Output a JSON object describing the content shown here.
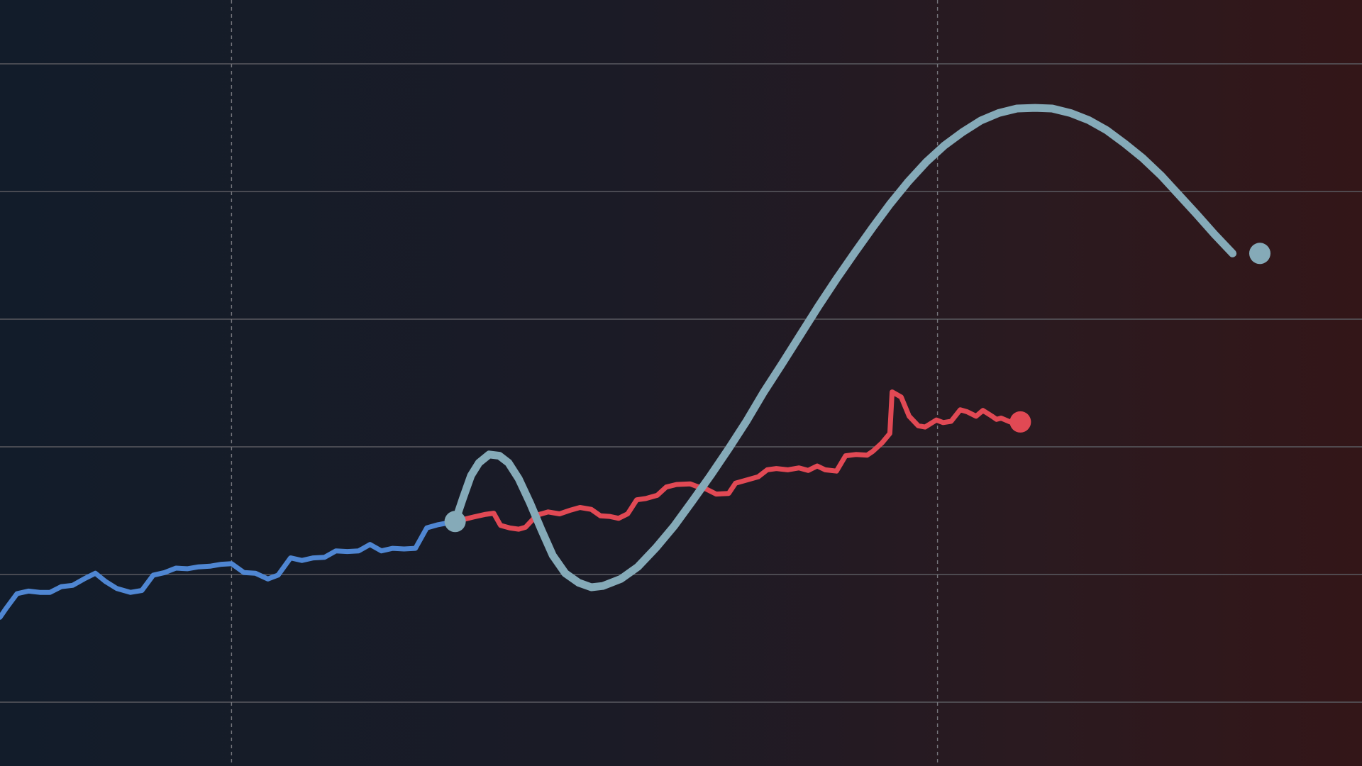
{
  "chart_data": {
    "type": "line",
    "title": "",
    "xlabel": "",
    "ylabel": "",
    "grid": true,
    "legend": "none",
    "xlim": [
      0,
      120
    ],
    "ylim": [
      0,
      12
    ],
    "y_gridlines": [
      1,
      3,
      5,
      7,
      9,
      11
    ],
    "x_gridlines": [
      20.4,
      82.6
    ],
    "colors": {
      "history": "#4f86d2",
      "actual": "#e14954",
      "projection": "#85aab8"
    },
    "series": [
      {
        "key": "history",
        "values": [
          [
            0,
            2.33
          ],
          [
            0.5,
            2.46
          ],
          [
            1.5,
            2.7
          ],
          [
            2.5,
            2.74
          ],
          [
            3.5,
            2.72
          ],
          [
            4.4,
            2.72
          ],
          [
            5.4,
            2.81
          ],
          [
            6.4,
            2.83
          ],
          [
            7.4,
            2.93
          ],
          [
            8.4,
            3.02
          ],
          [
            9.3,
            2.89
          ],
          [
            10.3,
            2.78
          ],
          [
            11.5,
            2.72
          ],
          [
            12.5,
            2.75
          ],
          [
            13.5,
            2.99
          ],
          [
            14.5,
            3.03
          ],
          [
            15.5,
            3.1
          ],
          [
            16.5,
            3.09
          ],
          [
            17.5,
            3.12
          ],
          [
            18.5,
            3.13
          ],
          [
            19.5,
            3.16
          ],
          [
            20.4,
            3.17
          ],
          [
            21.5,
            3.03
          ],
          [
            22.5,
            3.02
          ],
          [
            23.6,
            2.93
          ],
          [
            24.5,
            2.99
          ],
          [
            25.6,
            3.26
          ],
          [
            26.6,
            3.22
          ],
          [
            27.6,
            3.26
          ],
          [
            28.6,
            3.27
          ],
          [
            29.6,
            3.37
          ],
          [
            30.6,
            3.36
          ],
          [
            31.6,
            3.37
          ],
          [
            32.6,
            3.47
          ],
          [
            33.6,
            3.37
          ],
          [
            34.6,
            3.41
          ],
          [
            35.6,
            3.4
          ],
          [
            36.6,
            3.41
          ],
          [
            37.6,
            3.73
          ],
          [
            38.6,
            3.78
          ],
          [
            40.1,
            3.83
          ]
        ]
      },
      {
        "key": "actual",
        "values": [
          [
            40.1,
            3.83
          ],
          [
            41.7,
            3.9
          ],
          [
            42.7,
            3.94
          ],
          [
            43.5,
            3.96
          ],
          [
            44.1,
            3.77
          ],
          [
            44.9,
            3.73
          ],
          [
            45.7,
            3.71
          ],
          [
            46.3,
            3.74
          ],
          [
            47.3,
            3.93
          ],
          [
            48.3,
            3.98
          ],
          [
            49.3,
            3.95
          ],
          [
            50.3,
            4.01
          ],
          [
            51.1,
            4.05
          ],
          [
            52.1,
            4.02
          ],
          [
            52.9,
            3.92
          ],
          [
            53.7,
            3.91
          ],
          [
            54.5,
            3.88
          ],
          [
            55.3,
            3.95
          ],
          [
            56.1,
            4.17
          ],
          [
            56.9,
            4.19
          ],
          [
            57.9,
            4.24
          ],
          [
            58.7,
            4.37
          ],
          [
            59.6,
            4.41
          ],
          [
            60.8,
            4.42
          ],
          [
            61.4,
            4.38
          ],
          [
            62.2,
            4.34
          ],
          [
            63.1,
            4.26
          ],
          [
            64.2,
            4.27
          ],
          [
            64.8,
            4.43
          ],
          [
            65.8,
            4.48
          ],
          [
            66.8,
            4.53
          ],
          [
            67.6,
            4.64
          ],
          [
            68.4,
            4.66
          ],
          [
            69.4,
            4.64
          ],
          [
            70.4,
            4.67
          ],
          [
            71.2,
            4.63
          ],
          [
            72.0,
            4.7
          ],
          [
            72.7,
            4.64
          ],
          [
            73.7,
            4.62
          ],
          [
            74.5,
            4.86
          ],
          [
            75.4,
            4.88
          ],
          [
            76.4,
            4.87
          ],
          [
            76.9,
            4.93
          ],
          [
            77.7,
            5.06
          ],
          [
            78.4,
            5.21
          ],
          [
            78.6,
            5.86
          ],
          [
            79.4,
            5.78
          ],
          [
            80.1,
            5.48
          ],
          [
            80.9,
            5.33
          ],
          [
            81.5,
            5.31
          ],
          [
            82.5,
            5.42
          ],
          [
            83.1,
            5.38
          ],
          [
            83.8,
            5.4
          ],
          [
            84.6,
            5.58
          ],
          [
            85.2,
            5.55
          ],
          [
            86.0,
            5.48
          ],
          [
            86.6,
            5.57
          ],
          [
            87.4,
            5.48
          ],
          [
            87.8,
            5.43
          ],
          [
            88.2,
            5.45
          ],
          [
            89.0,
            5.39
          ]
        ]
      },
      {
        "key": "projection",
        "values": [
          [
            40.1,
            3.83
          ],
          [
            40.8,
            4.2
          ],
          [
            41.5,
            4.55
          ],
          [
            42.2,
            4.75
          ],
          [
            43.1,
            4.88
          ],
          [
            44.0,
            4.86
          ],
          [
            44.8,
            4.75
          ],
          [
            45.7,
            4.5
          ],
          [
            46.7,
            4.12
          ],
          [
            47.7,
            3.7
          ],
          [
            48.7,
            3.3
          ],
          [
            49.8,
            3.02
          ],
          [
            51.0,
            2.87
          ],
          [
            52.1,
            2.8
          ],
          [
            53.1,
            2.82
          ],
          [
            54.7,
            2.93
          ],
          [
            56.2,
            3.12
          ],
          [
            57.8,
            3.42
          ],
          [
            59.4,
            3.76
          ],
          [
            61.0,
            4.15
          ],
          [
            62.6,
            4.55
          ],
          [
            64.2,
            4.97
          ],
          [
            65.8,
            5.41
          ],
          [
            67.3,
            5.86
          ],
          [
            68.9,
            6.3
          ],
          [
            70.5,
            6.75
          ],
          [
            72.1,
            7.2
          ],
          [
            73.7,
            7.63
          ],
          [
            75.3,
            8.04
          ],
          [
            76.9,
            8.44
          ],
          [
            78.4,
            8.8
          ],
          [
            80.0,
            9.15
          ],
          [
            81.6,
            9.46
          ],
          [
            83.2,
            9.72
          ],
          [
            84.8,
            9.93
          ],
          [
            86.4,
            10.11
          ],
          [
            88.0,
            10.23
          ],
          [
            89.6,
            10.3
          ],
          [
            91.2,
            10.31
          ],
          [
            92.7,
            10.3
          ],
          [
            94.3,
            10.23
          ],
          [
            95.9,
            10.12
          ],
          [
            97.5,
            9.96
          ],
          [
            99.1,
            9.75
          ],
          [
            100.7,
            9.52
          ],
          [
            102.3,
            9.25
          ],
          [
            103.8,
            8.96
          ],
          [
            105.4,
            8.65
          ],
          [
            107.0,
            8.33
          ],
          [
            108.6,
            8.03
          ]
        ]
      }
    ],
    "markers": [
      {
        "series": "projection",
        "x": 40.1,
        "y": 3.83
      },
      {
        "series": "actual",
        "x": 89.9,
        "y": 5.39
      },
      {
        "series": "projection",
        "x": 111.0,
        "y": 8.03
      }
    ]
  }
}
